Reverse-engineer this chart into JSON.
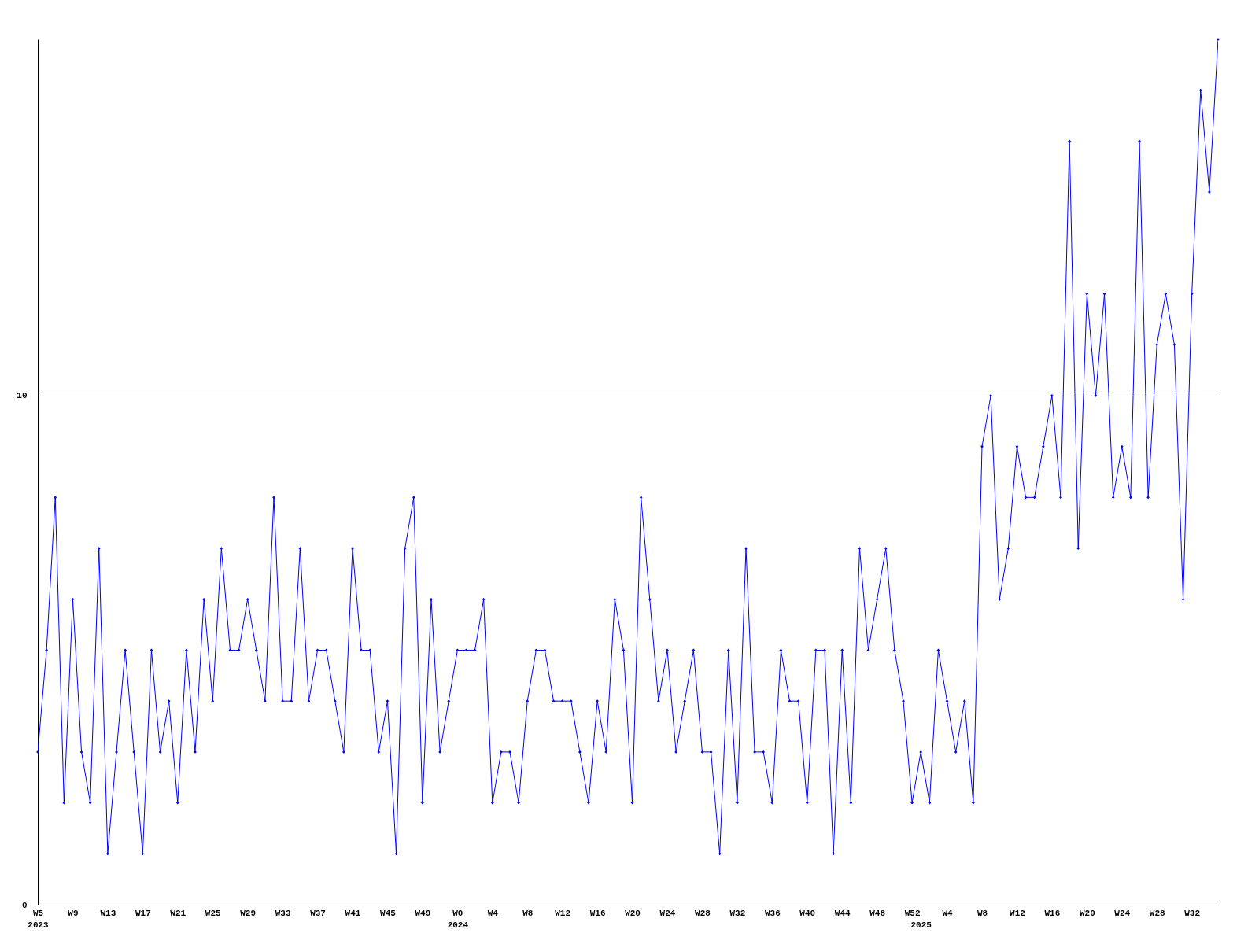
{
  "chart_data": {
    "type": "line",
    "categories": [
      "W5\n2023",
      null,
      null,
      null,
      "W9",
      null,
      null,
      null,
      "W13",
      null,
      null,
      null,
      "W17",
      null,
      null,
      null,
      "W21",
      null,
      null,
      null,
      "W25",
      null,
      null,
      null,
      "W29",
      null,
      null,
      null,
      "W33",
      null,
      null,
      null,
      "W37",
      null,
      null,
      null,
      "W41",
      null,
      null,
      null,
      "W45",
      null,
      null,
      null,
      "W49",
      null,
      null,
      null,
      "W0\n2024",
      null,
      null,
      null,
      "W4",
      null,
      null,
      null,
      "W8",
      null,
      null,
      null,
      "W12",
      null,
      null,
      null,
      "W16",
      null,
      null,
      null,
      "W20",
      null,
      null,
      null,
      "W24",
      null,
      null,
      null,
      "W28",
      null,
      null,
      null,
      "W32",
      null,
      null,
      null,
      "W36",
      null,
      null,
      null,
      "W40",
      null,
      null,
      null,
      "W44",
      null,
      null,
      null,
      "W48",
      null,
      null,
      null,
      "W52",
      "\n2025",
      null,
      null,
      "W4",
      null,
      null,
      null,
      "W8",
      null,
      null,
      null,
      "W12",
      null,
      null,
      null,
      "W16",
      null,
      null,
      null,
      "W20",
      null,
      null,
      null,
      "W24",
      null,
      null,
      null,
      "W28",
      null,
      null,
      null,
      "W32",
      null,
      null,
      null
    ],
    "series": [
      {
        "color": "#0000ff",
        "values": [
          3,
          5,
          8,
          2,
          6,
          3,
          2,
          7,
          1,
          3,
          5,
          3,
          1,
          5,
          3,
          4,
          2,
          5,
          3,
          6,
          4,
          7,
          5,
          5,
          6,
          5,
          4,
          8,
          4,
          4,
          7,
          4,
          5,
          5,
          4,
          3,
          7,
          5,
          5,
          3,
          4,
          1,
          7,
          8,
          2,
          6,
          3,
          4,
          5,
          5,
          5,
          6,
          2,
          3,
          3,
          2,
          4,
          5,
          5,
          4,
          4,
          4,
          3,
          2,
          4,
          3,
          6,
          5,
          2,
          8,
          6,
          4,
          5,
          3,
          4,
          5,
          3,
          3,
          1,
          5,
          2,
          7,
          3,
          3,
          2,
          5,
          4,
          4,
          2,
          5,
          5,
          1,
          5,
          2,
          7,
          5,
          6,
          7,
          5,
          4,
          2,
          3,
          2,
          5,
          4,
          3,
          4,
          2,
          9,
          10,
          6,
          7,
          9,
          8,
          8,
          9,
          10,
          8,
          15,
          7,
          12,
          10,
          12,
          8,
          9,
          8,
          15,
          8,
          11,
          12,
          11,
          6,
          12,
          16,
          14,
          17
        ]
      }
    ],
    "ylim": [
      0,
      17
    ],
    "yticks": [
      0,
      10
    ],
    "grid": "y",
    "marker": "diamond",
    "line_style": "solid"
  }
}
